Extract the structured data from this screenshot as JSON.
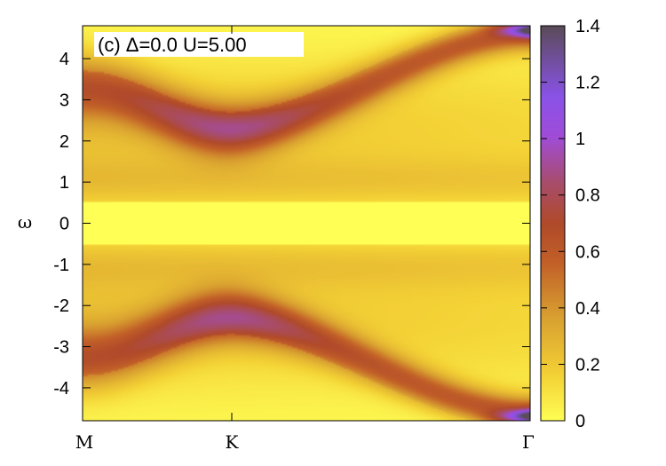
{
  "chart_data": {
    "type": "heatmap",
    "title": "",
    "annotation": "(c)  Δ=0.0  U=5.00",
    "ylabel": "ω",
    "xlabel": "",
    "ylim": [
      -4.8,
      4.8
    ],
    "x_ticks": [
      "M",
      "K",
      "Γ"
    ],
    "x_tick_positions": [
      0,
      1,
      3
    ],
    "y_ticks": [
      -4,
      -3,
      -2,
      -1,
      0,
      1,
      2,
      3,
      4
    ],
    "y_tick_labels": [
      "-4",
      "-3",
      "-2",
      "-1",
      "0",
      "1",
      "2",
      "3",
      "4"
    ],
    "colorbar": {
      "range": [
        0,
        1.4
      ],
      "ticks": [
        0,
        0.2,
        0.4,
        0.6,
        0.8,
        1,
        1.2,
        1.4
      ],
      "tick_labels": [
        "0",
        "0.2",
        "0.4",
        "0.6",
        "0.8",
        "1",
        "1.2",
        "1.4"
      ],
      "colors": [
        "#ffff55",
        "#f3d035",
        "#d9a130",
        "#c26028",
        "#b04a2a",
        "#a84c6a",
        "#a04cd8",
        "#8a52e8",
        "#5a4c58"
      ]
    },
    "features": {
      "bright_band_half_width": 0.5,
      "band_edge_at_M": 3.3,
      "band_edge_at_K": 2.3,
      "band_edge_at_Gamma": 4.6,
      "max_intensity_near_Gamma": 1.0
    }
  }
}
